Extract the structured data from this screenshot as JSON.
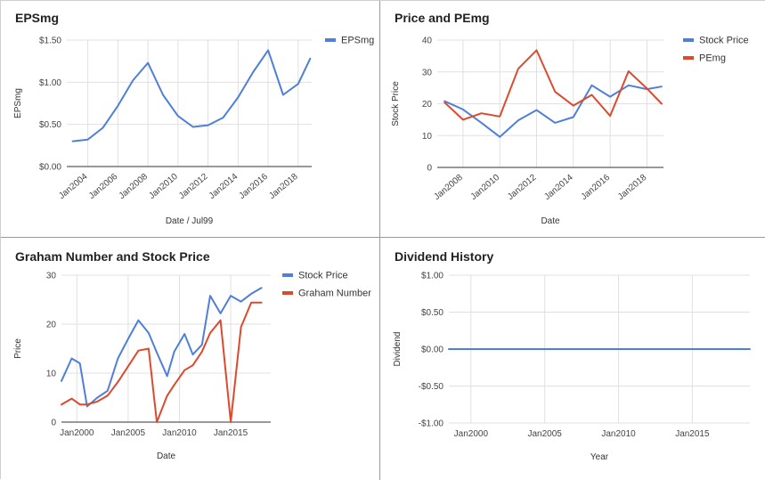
{
  "chart_data": [
    {
      "type": "line",
      "title": "EPSmg",
      "xlabel": "Date / Jul99",
      "ylabel": "EPSmg",
      "ylim": [
        0,
        1.5
      ],
      "xlim": [
        2002.6,
        2018.9
      ],
      "yticks": [
        0,
        0.5,
        1.0,
        1.5
      ],
      "ytick_labels": [
        "$0.00",
        "$0.50",
        "$1.00",
        "$1.50"
      ],
      "xticks": [
        2004,
        2006,
        2008,
        2010,
        2012,
        2014,
        2016,
        2018
      ],
      "xtick_labels": [
        "Jan2004",
        "Jan2006",
        "Jan2008",
        "Jan2010",
        "Jan2012",
        "Jan2014",
        "Jan2016",
        "Jan2018"
      ],
      "xtick_rotate": true,
      "legend_position": "right",
      "series": [
        {
          "name": "EPSmg",
          "color": "#4f7fd9",
          "x": [
            2003,
            2004,
            2005,
            2006,
            2007,
            2008,
            2009,
            2010,
            2011,
            2012,
            2013,
            2014,
            2015,
            2016,
            2017,
            2018,
            2018.8
          ],
          "values": [
            0.3,
            0.32,
            0.46,
            0.72,
            1.02,
            1.23,
            0.85,
            0.6,
            0.47,
            0.49,
            0.58,
            0.82,
            1.12,
            1.38,
            0.85,
            0.98,
            1.28
          ]
        }
      ]
    },
    {
      "type": "line",
      "title": "Price and PEmg",
      "xlabel": "Date",
      "ylabel": "Stock Price",
      "ylim": [
        0,
        40
      ],
      "xlim": [
        2006.6,
        2018.9
      ],
      "yticks": [
        0,
        10,
        20,
        30,
        40
      ],
      "ytick_labels": [
        "0",
        "10",
        "20",
        "30",
        "40"
      ],
      "xticks": [
        2008,
        2010,
        2012,
        2014,
        2016,
        2018
      ],
      "xtick_labels": [
        "Jan2008",
        "Jan2010",
        "Jan2012",
        "Jan2014",
        "Jan2016",
        "Jan2018"
      ],
      "xtick_rotate": true,
      "legend_position": "right",
      "series": [
        {
          "name": "Stock Price",
          "color": "#4f7fd9",
          "x": [
            2007,
            2008,
            2009,
            2010,
            2011,
            2012,
            2013,
            2014,
            2015,
            2016,
            2017,
            2018,
            2018.8
          ],
          "values": [
            20.8,
            18.2,
            14.0,
            9.6,
            14.8,
            18.0,
            14.0,
            15.8,
            25.8,
            22.2,
            25.8,
            24.6,
            25.4
          ]
        },
        {
          "name": "PEmg",
          "color": "#dc4a2e",
          "x": [
            2007,
            2008,
            2009,
            2010,
            2011,
            2012,
            2013,
            2014,
            2015,
            2016,
            2017,
            2018,
            2018.8
          ],
          "values": [
            20.4,
            15.0,
            17.0,
            16.0,
            31.0,
            36.8,
            23.8,
            19.4,
            22.8,
            16.2,
            30.2,
            24.8,
            20.0
          ]
        }
      ]
    },
    {
      "type": "line",
      "title": "Graham Number and Stock Price",
      "xlabel": "Date",
      "ylabel": "Price",
      "ylim": [
        0,
        30
      ],
      "xlim": [
        1998.5,
        2018.9
      ],
      "yticks": [
        0,
        10,
        20,
        30
      ],
      "ytick_labels": [
        "0",
        "10",
        "20",
        "30"
      ],
      "xticks": [
        2000,
        2005,
        2010,
        2015
      ],
      "xtick_labels": [
        "Jan2000",
        "Jan2005",
        "Jan2010",
        "Jan2015"
      ],
      "xtick_rotate": false,
      "legend_position": "right",
      "series": [
        {
          "name": "Stock Price",
          "color": "#4f7fd9",
          "x": [
            1998.5,
            1999.5,
            2000.3,
            2001,
            2002,
            2003,
            2004,
            2005,
            2006,
            2007,
            2007.8,
            2008.8,
            2009.5,
            2010.5,
            2011.3,
            2012.2,
            2013,
            2014,
            2015,
            2016,
            2017,
            2018
          ],
          "values": [
            8.4,
            13.0,
            12.0,
            3.2,
            5.0,
            6.4,
            13.0,
            17.0,
            20.8,
            18.2,
            14.2,
            9.4,
            14.4,
            18.0,
            13.8,
            15.8,
            25.8,
            22.2,
            25.8,
            24.6,
            26.2,
            27.4
          ]
        },
        {
          "name": "Graham Number",
          "color": "#dc4a2e",
          "x": [
            1998.5,
            1999.5,
            2000.3,
            2001,
            2002,
            2003,
            2004,
            2005,
            2006,
            2007,
            2007.8,
            2008.8,
            2009.5,
            2010.5,
            2011.3,
            2012.2,
            2013,
            2014,
            2015,
            2016,
            2017,
            2018
          ],
          "values": [
            3.6,
            4.8,
            3.6,
            3.6,
            4.2,
            5.4,
            8.2,
            11.4,
            14.6,
            15.0,
            0.0,
            5.4,
            7.6,
            10.6,
            11.6,
            14.4,
            18.2,
            20.8,
            0.0,
            19.4,
            24.4,
            24.4
          ]
        }
      ]
    },
    {
      "type": "line",
      "title": "Dividend History",
      "xlabel": "Year",
      "ylabel": "Dividend",
      "ylim": [
        -1,
        1
      ],
      "xlim": [
        1998.5,
        2018.9
      ],
      "yticks": [
        -1,
        -0.5,
        0,
        0.5,
        1
      ],
      "ytick_labels": [
        "-$1.00",
        "-$0.50",
        "$0.00",
        "$0.50",
        "$1.00"
      ],
      "xticks": [
        2000,
        2005,
        2010,
        2015
      ],
      "xtick_labels": [
        "Jan2000",
        "Jan2005",
        "Jan2010",
        "Jan2015"
      ],
      "xtick_rotate": false,
      "legend_position": "none",
      "series": [
        {
          "color": "#4f7fd9",
          "x": [
            1998.5,
            2018.9
          ],
          "values": [
            0,
            0
          ]
        }
      ]
    }
  ]
}
